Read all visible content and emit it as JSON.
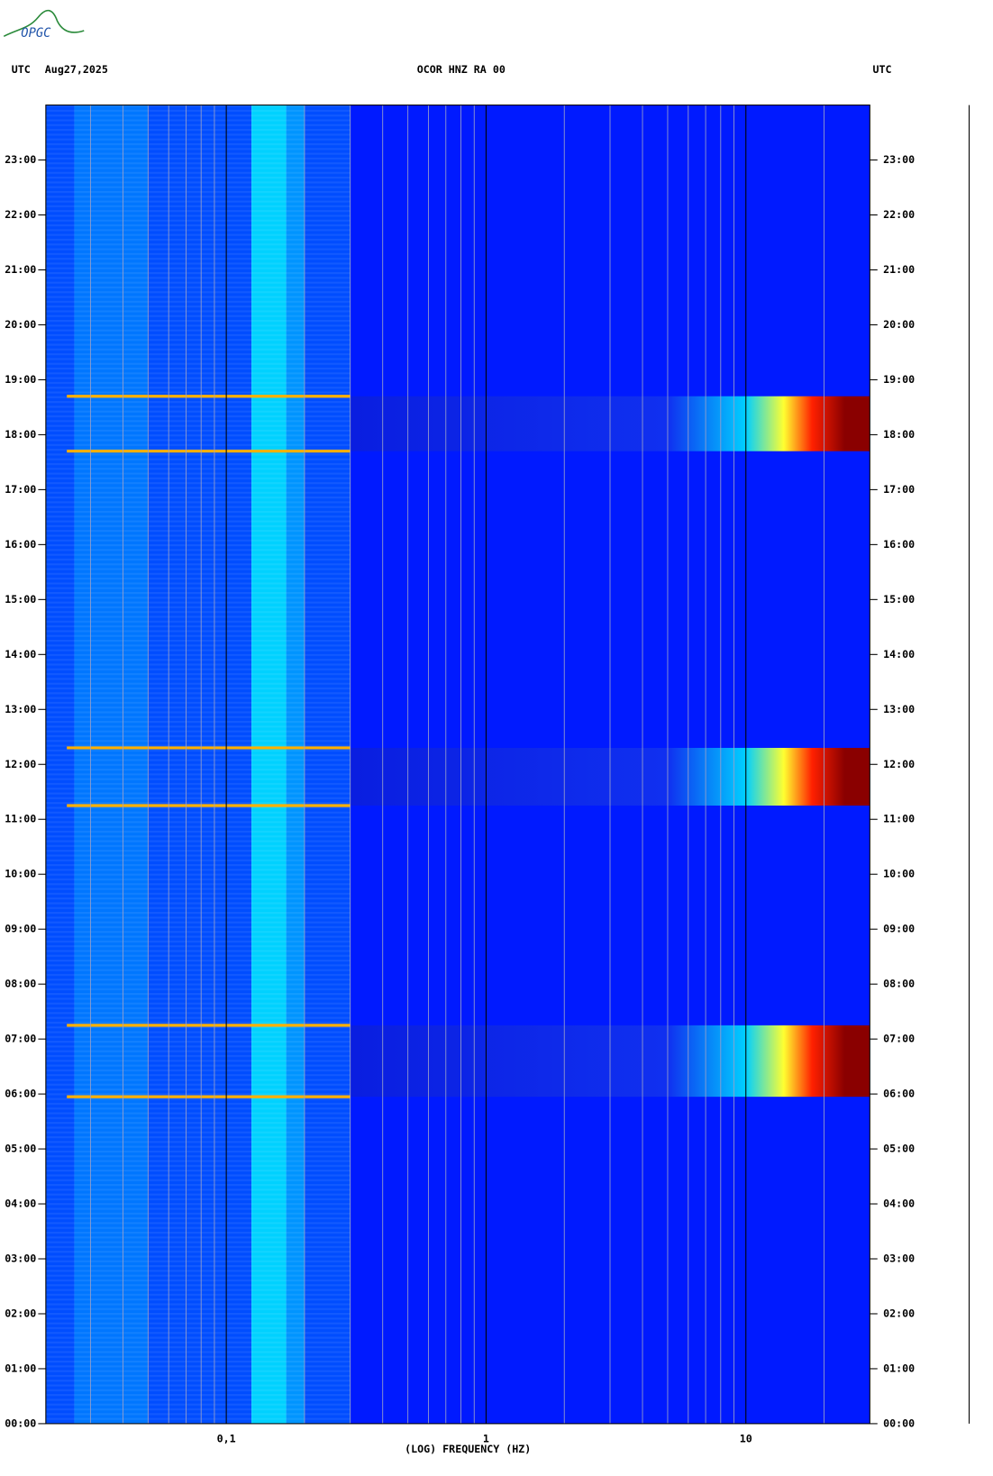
{
  "logo": "OPGC",
  "chart_data": {
    "type": "spectrogram",
    "title": "OCOR HNZ RA 00",
    "left_header": "UTC",
    "date": "Aug27,2025",
    "right_header": "UTC",
    "x_label": "(LOG) FREQUENCY (HZ)",
    "x_log": true,
    "xlim": [
      0.0202,
      30
    ],
    "xticks": [
      {
        "value": 0.1,
        "label": "0,1"
      },
      1,
      10
    ],
    "x_minor": [
      0.03,
      0.04,
      0.05,
      0.06,
      0.07,
      0.08,
      0.09,
      0.2,
      0.3,
      0.4,
      0.5,
      0.6,
      0.7,
      0.8,
      0.9,
      2,
      3,
      4,
      5,
      6,
      7,
      8,
      9,
      20
    ],
    "ylim": [
      0,
      24
    ],
    "yticks": [
      {
        "value": 0,
        "label": "00:00"
      },
      {
        "value": 1,
        "label": "01:00"
      },
      {
        "value": 2,
        "label": "02:00"
      },
      {
        "value": 3,
        "label": "03:00"
      },
      {
        "value": 4,
        "label": "04:00"
      },
      {
        "value": 5,
        "label": "05:00"
      },
      {
        "value": 6,
        "label": "06:00"
      },
      {
        "value": 7,
        "label": "07:00"
      },
      {
        "value": 8,
        "label": "08:00"
      },
      {
        "value": 9,
        "label": "09:00"
      },
      {
        "value": 10,
        "label": "10:00"
      },
      {
        "value": 11,
        "label": "11:00"
      },
      {
        "value": 12,
        "label": "12:00"
      },
      {
        "value": 13,
        "label": "13:00"
      },
      {
        "value": 14,
        "label": "14:00"
      },
      {
        "value": 15,
        "label": "15:00"
      },
      {
        "value": 16,
        "label": "16:00"
      },
      {
        "value": 17,
        "label": "17:00"
      },
      {
        "value": 18,
        "label": "18:00"
      },
      {
        "value": 19,
        "label": "19:00"
      },
      {
        "value": 20,
        "label": "20:00"
      },
      {
        "value": 21,
        "label": "21:00"
      },
      {
        "value": 22,
        "label": "22:00"
      },
      {
        "value": 23,
        "label": "23:00"
      }
    ],
    "colormap": [
      "#00007f",
      "#0000ff",
      "#0080ff",
      "#00ffff",
      "#80ff80",
      "#ffff00",
      "#ff8000",
      "#ff0000",
      "#7f0000"
    ],
    "background": {
      "freq_edges": [
        0.0202,
        0.026,
        0.05,
        0.1,
        0.125,
        0.17,
        0.2,
        0.3,
        30
      ],
      "levels": [
        0.2,
        0.24,
        0.2,
        0.2,
        0.33,
        0.27,
        0.2,
        0.15
      ]
    },
    "events": [
      {
        "start": 5.95,
        "end": 7.25
      },
      {
        "start": 11.25,
        "end": 12.3
      },
      {
        "start": 17.7,
        "end": 18.7
      }
    ],
    "event_gradient": [
      {
        "hz": 0.3,
        "color": "#0a1ee0"
      },
      {
        "hz": 5,
        "color": "#1030f0"
      },
      {
        "hz": 10,
        "color": "#00d0ff"
      },
      {
        "hz": 14,
        "color": "#ffff30"
      },
      {
        "hz": 18,
        "color": "#ff2000"
      },
      {
        "hz": 24,
        "color": "#8a0000"
      }
    ],
    "event_edge_color": "#ffb000"
  }
}
